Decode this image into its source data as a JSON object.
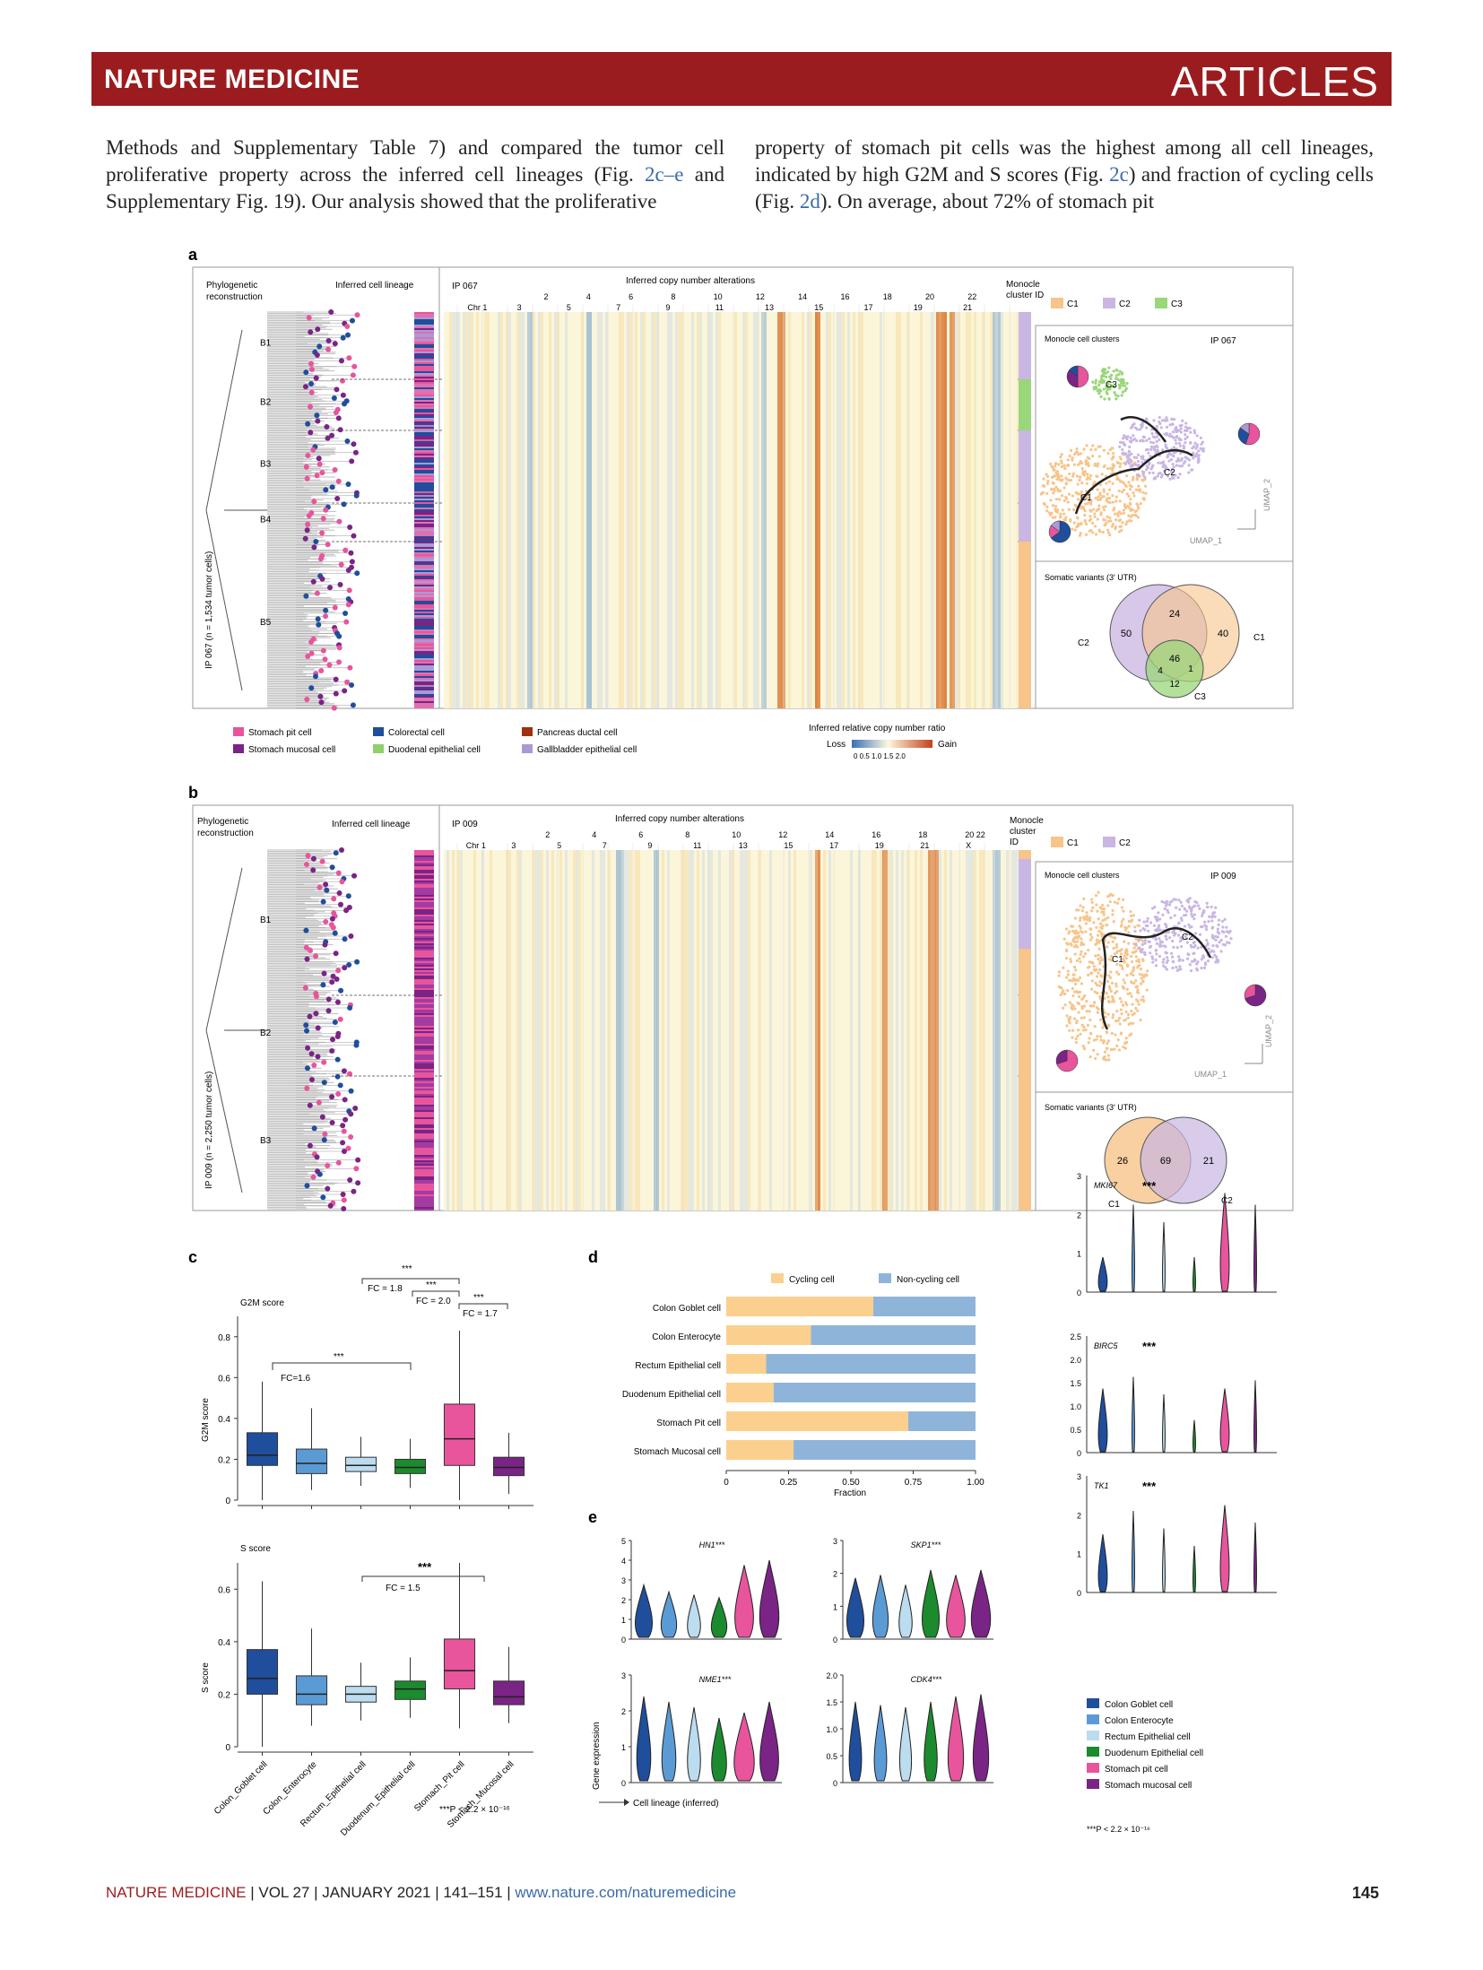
{
  "header": {
    "journal": "NATURE MEDICINE",
    "section": "ARTICLES"
  },
  "body": {
    "col1": [
      {
        "t": "Methods and Supplementary Table 7) and compared the tumor cell proliferative property across the inferred cell lineages (Fig. "
      },
      {
        "t": "2c–e",
        "ref": true
      },
      {
        "t": " and Supplementary Fig. 19). Our analysis showed that the proliferative"
      }
    ],
    "col2": [
      {
        "t": "property of stomach pit cells was the highest among all cell lineages, indicated by high G2M and S scores (Fig. "
      },
      {
        "t": "2c",
        "ref": true
      },
      {
        "t": ") and fraction of cycling cells (Fig. "
      },
      {
        "t": "2d",
        "ref": true
      },
      {
        "t": "). On average, about 72% of stomach pit"
      }
    ]
  },
  "colors": {
    "stomach_pit": "#e8559c",
    "stomach_mucosal": "#7a2486",
    "colorectal": "#1f4e9c",
    "duodenal": "#8fd06b",
    "pancreas": "#a03010",
    "gallbladder": "#a99ad6",
    "colon_goblet": "#1f4e9c",
    "colon_enterocyte": "#5b9bd5",
    "rectum": "#bcdcef",
    "duodenum": "#1c8a2e",
    "C1": "#f7c48a",
    "C2": "#c9b6e3",
    "C3": "#9ad67a",
    "cycling": "#fbd08e",
    "noncycling": "#8fb4d9",
    "banner": "#9b1c1f"
  },
  "figure": {
    "panel_a": {
      "label": "a",
      "phylo_title": [
        "Phylogenetic",
        "reconstruction"
      ],
      "lineage_title": "Inferred cell lineage",
      "sample": "IP 067",
      "cna_title": "Inferred copy number alterations",
      "chr_top": [
        "2",
        "4",
        "6",
        "8",
        "10",
        "12",
        "14",
        "16",
        "18",
        "20",
        "22"
      ],
      "chr_bottom": [
        "Chr 1",
        "3",
        "5",
        "7",
        "9",
        "11",
        "13",
        "15",
        "17",
        "19",
        "21"
      ],
      "monocle_title": [
        "Monocle",
        "cluster ID"
      ],
      "clusters": [
        "C1",
        "C2",
        "C3"
      ],
      "branches": [
        "B1",
        "B2",
        "B3",
        "B4",
        "B5"
      ],
      "y_label": "IP 067 (n = 1,534 tumor cells)",
      "umap_title": "Monocle cell clusters",
      "umap_sample": "IP 067",
      "umap_x": "UMAP_1",
      "umap_y": "UMAP_2",
      "venn_title": "Somatic variants (3′ UTR)",
      "venn_values": {
        "C2_only": "50",
        "C1C2": "24",
        "C1_only": "40",
        "all": "46",
        "C2C3": "4",
        "C1C3": "1",
        "C3_only": "12"
      },
      "venn_labels": [
        "C2",
        "C1",
        "C3"
      ]
    },
    "legend_a": {
      "items": [
        "Stomach pit cell",
        "Stomach mucosal cell",
        "Colorectal cell",
        "Duodenal epithelial cell",
        "Pancreas ductal cell",
        "Gallbladder epithelial cell"
      ],
      "scale_title": "Inferred relative copy number ratio",
      "loss": "Loss",
      "gain": "Gain",
      "scale_ticks": "0  0.5 1.0 1.5 2.0"
    },
    "panel_b": {
      "label": "b",
      "phylo_title": [
        "Phylogenetic",
        "reconstruction"
      ],
      "lineage_title": "Inferred cell lineage",
      "sample": "IP 009",
      "cna_title": "Inferred copy number alterations",
      "chr_top": [
        "2",
        "4",
        "6",
        "8",
        "10",
        "12",
        "14",
        "16",
        "18",
        "20 22"
      ],
      "chr_bottom": [
        "Chr 1",
        "3",
        "5",
        "7",
        "9",
        "11",
        "13",
        "15",
        "17",
        "19",
        "21",
        "X"
      ],
      "monocle_title": [
        "Monocle",
        "cluster",
        "ID"
      ],
      "clusters": [
        "C1",
        "C2"
      ],
      "branches": [
        "B1",
        "B2",
        "B3"
      ],
      "y_label": "IP 009 (n = 2,250 tumor cells)",
      "umap_title": "Monocle cell clusters",
      "umap_sample": "IP 009",
      "umap_x": "UMAP_1",
      "umap_y": "UMAP_2",
      "venn_title": "Somatic variants (3′ UTR)",
      "venn_values": {
        "C1_only": "26",
        "both": "69",
        "C2_only": "21"
      },
      "venn_labels": [
        "C1",
        "C2"
      ]
    },
    "panel_c": {
      "label": "c",
      "g2m_title": "G2M score",
      "g2m_ylabel": "G2M score",
      "s_title": "S score",
      "s_ylabel": "S score",
      "annotations": {
        "fc18": "FC = 1.8",
        "fc20": "FC = 2.0",
        "fc17": "FC = 1.7",
        "fc16": "FC=1.6",
        "fc15": "FC = 1.5",
        "stars": "***"
      },
      "categories": [
        "Colon_Goblet cell",
        "Colon_Enterocyte",
        "Rectum_Epithelial cell",
        "Duodenum_Epithelial cell",
        "Stomach_Pit cell",
        "Stomach_Mucosal cell"
      ],
      "pvalue": "***P < 2.2 × 10⁻¹⁶"
    },
    "panel_d": {
      "label": "d",
      "legend": [
        "Cycling cell",
        "Non-cycling cell"
      ],
      "xlabel": "Fraction",
      "xticks": [
        "0",
        "0.25",
        "0.50",
        "0.75",
        "1.00"
      ]
    },
    "panel_e": {
      "label": "e",
      "genes": [
        "HN1***",
        "SKP1***",
        "NME1***",
        "CDK4***"
      ],
      "right_genes": [
        "MKI67",
        "BIRC5",
        "TK1"
      ],
      "stars": "***",
      "ylabel": "Gene expression",
      "xlabel": "Cell lineage (inferred)",
      "legend": [
        "Colon_Goblet cell",
        "Colon_Enterocyte",
        "Rectum_Epithelial cell",
        "Duodenum_Epithelial cell",
        "Stomach pit cell",
        "Stomach mucosal cell"
      ],
      "pvalue": "***P < 2.2 × 10⁻¹⁶"
    }
  },
  "chart_data": [
    {
      "type": "box",
      "title": "G2M score",
      "ylabel": "G2M score",
      "ylim": [
        0,
        0.9
      ],
      "categories": [
        "Colon_Goblet cell",
        "Colon_Enterocyte",
        "Rectum_Epithelial cell",
        "Duodenum_Epithelial cell",
        "Stomach_Pit cell",
        "Stomach_Mucosal cell"
      ],
      "boxes": [
        {
          "min": 0.0,
          "q1": 0.17,
          "median": 0.22,
          "q3": 0.33,
          "max": 0.58
        },
        {
          "min": 0.05,
          "q1": 0.13,
          "median": 0.18,
          "q3": 0.25,
          "max": 0.45
        },
        {
          "min": 0.07,
          "q1": 0.14,
          "median": 0.17,
          "q3": 0.21,
          "max": 0.31
        },
        {
          "min": 0.06,
          "q1": 0.13,
          "median": 0.16,
          "q3": 0.2,
          "max": 0.3
        },
        {
          "min": 0.0,
          "q1": 0.17,
          "median": 0.3,
          "q3": 0.47,
          "max": 0.83
        },
        {
          "min": 0.03,
          "q1": 0.12,
          "median": 0.16,
          "q3": 0.21,
          "max": 0.33
        }
      ]
    },
    {
      "type": "box",
      "title": "S score",
      "ylabel": "S score",
      "ylim": [
        0,
        0.7
      ],
      "categories": [
        "Colon_Goblet cell",
        "Colon_Enterocyte",
        "Rectum_Epithelial cell",
        "Duodenum_Epithelial cell",
        "Stomach_Pit cell",
        "Stomach_Mucosal cell"
      ],
      "boxes": [
        {
          "min": 0.0,
          "q1": 0.2,
          "median": 0.26,
          "q3": 0.37,
          "max": 0.63
        },
        {
          "min": 0.08,
          "q1": 0.16,
          "median": 0.2,
          "q3": 0.27,
          "max": 0.45
        },
        {
          "min": 0.1,
          "q1": 0.17,
          "median": 0.2,
          "q3": 0.23,
          "max": 0.32
        },
        {
          "min": 0.11,
          "q1": 0.18,
          "median": 0.22,
          "q3": 0.25,
          "max": 0.34
        },
        {
          "min": 0.07,
          "q1": 0.22,
          "median": 0.29,
          "q3": 0.41,
          "max": 0.7
        },
        {
          "min": 0.09,
          "q1": 0.16,
          "median": 0.19,
          "q3": 0.25,
          "max": 0.38
        }
      ]
    },
    {
      "type": "bar",
      "stacked": true,
      "orientation": "horizontal",
      "xlabel": "Fraction",
      "xlim": [
        0,
        1
      ],
      "categories": [
        "Colon_Goblet cell",
        "Colon_Enterocyte",
        "Rectum_Epithelial cell",
        "Duodenum_Epithelial cell",
        "Stomach_Pit cell",
        "Stomach_Mucosal cell"
      ],
      "series": [
        {
          "name": "Cycling cell",
          "values": [
            0.59,
            0.34,
            0.16,
            0.19,
            0.73,
            0.27
          ]
        },
        {
          "name": "Non-cycling cell",
          "values": [
            0.41,
            0.66,
            0.84,
            0.81,
            0.27,
            0.73
          ]
        }
      ]
    }
  ]
}
